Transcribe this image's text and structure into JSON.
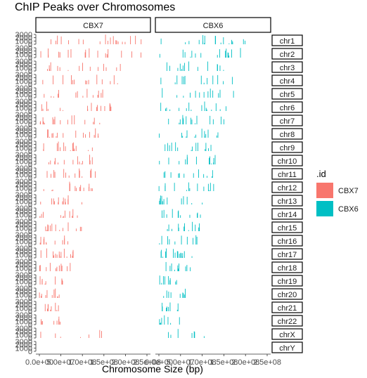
{
  "chart_data": {
    "type": "bar",
    "title": "ChIP Peaks over Chromosomes",
    "xlabel": "Chromosome Size (bp)",
    "ylabel": "",
    "facet_columns": [
      "CBX7",
      "CBX6"
    ],
    "facet_rows": [
      "chr1",
      "chr2",
      "chr3",
      "chr4",
      "chr5",
      "chr6",
      "chr7",
      "chr8",
      "chr9",
      "chr10",
      "chr11",
      "chr12",
      "chr13",
      "chr14",
      "chr15",
      "chr16",
      "chr17",
      "chr18",
      "chr19",
      "chr20",
      "chr21",
      "chr22",
      "chrX",
      "chrY"
    ],
    "x_tick_labels": [
      "0.0e+00",
      "5.0e+07",
      "1.0e+08",
      "1.5e+08",
      "2.0e+08",
      "2.5e+08"
    ],
    "x_tick_values": [
      0,
      50000000,
      100000000,
      150000000,
      200000000,
      250000000
    ],
    "xlim": [
      0,
      250000000
    ],
    "y_tick_labels": [
      "0",
      "1000",
      "2000",
      "3000"
    ],
    "y_tick_values": [
      0,
      1000,
      2000,
      3000
    ],
    "ylim": [
      0,
      3000
    ],
    "legend": {
      "title": ".id",
      "position": "right",
      "entries": [
        {
          "label": "CBX7",
          "color": "#F8766D"
        },
        {
          "label": "CBX6",
          "color": "#00BFC4"
        }
      ]
    },
    "series": [
      {
        "name": "CBX7",
        "color": "#F8766D",
        "lengths_mb": [
          248,
          242,
          198,
          190,
          181,
          171,
          159,
          145,
          138,
          134,
          135,
          133,
          114,
          107,
          102,
          90,
          83,
          80,
          59,
          64,
          47,
          51,
          156,
          57
        ],
        "density": [
          0.16,
          0.13,
          0.11,
          0.1,
          0.1,
          0.12,
          0.12,
          0.12,
          0.11,
          0.1,
          0.1,
          0.1,
          0.09,
          0.09,
          0.09,
          0.07,
          0.12,
          0.07,
          0.06,
          0.07,
          0.05,
          0.05,
          0.03,
          0.0
        ]
      },
      {
        "name": "CBX6",
        "color": "#00BFC4",
        "lengths_mb": [
          248,
          242,
          198,
          190,
          181,
          171,
          159,
          145,
          138,
          134,
          135,
          133,
          114,
          107,
          102,
          90,
          83,
          80,
          59,
          64,
          47,
          51,
          156,
          57
        ],
        "density": [
          0.14,
          0.12,
          0.1,
          0.09,
          0.09,
          0.12,
          0.11,
          0.1,
          0.1,
          0.09,
          0.08,
          0.09,
          0.08,
          0.08,
          0.09,
          0.06,
          0.12,
          0.06,
          0.05,
          0.05,
          0.04,
          0.04,
          0.03,
          0.0
        ]
      }
    ]
  }
}
